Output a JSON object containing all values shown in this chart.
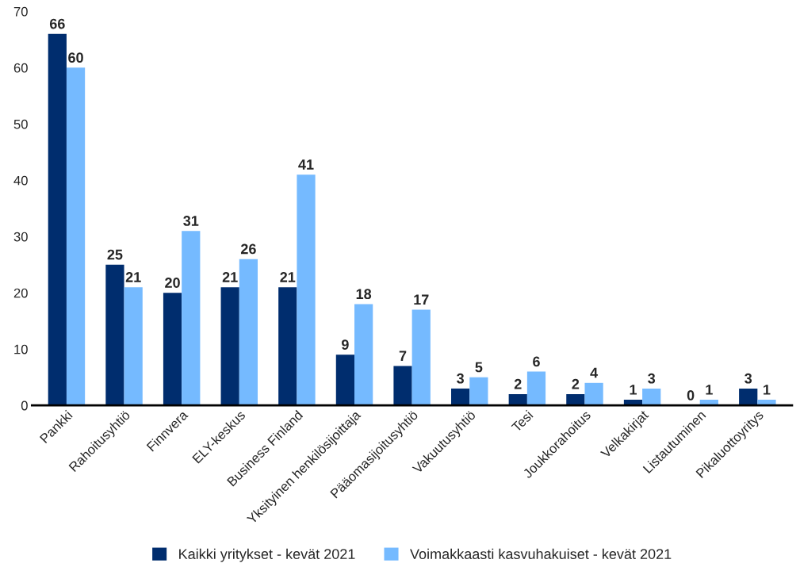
{
  "chart_data": {
    "type": "bar",
    "categories": [
      "Pankki",
      "Rahoitusyhtiö",
      "Finnvera",
      "ELY-keskus",
      "Business Finland",
      "Yksityinen henkilösijoittaja",
      "Pääomasijoitusyhtiö",
      "Vakuutusyhtiö",
      "Tesi",
      "Joukkorahoitus",
      "Velkakirjat",
      "Listautuminen",
      "Pikaluottoyritys"
    ],
    "series": [
      {
        "name": "Kaikki yritykset - kevät 2021",
        "color": "#002d6e",
        "values": [
          66,
          25,
          20,
          21,
          21,
          9,
          7,
          3,
          2,
          2,
          1,
          0,
          3
        ]
      },
      {
        "name": "Voimakkaasti kasvuhakuiset - kevät 2021",
        "color": "#75baff",
        "values": [
          60,
          21,
          31,
          26,
          41,
          18,
          17,
          5,
          6,
          4,
          3,
          1,
          1
        ]
      }
    ],
    "ylim": [
      0,
      70
    ],
    "yticks": [
      0,
      10,
      20,
      30,
      40,
      50,
      60,
      70
    ],
    "grid": false,
    "legend": "bottom",
    "data_labels": true
  }
}
